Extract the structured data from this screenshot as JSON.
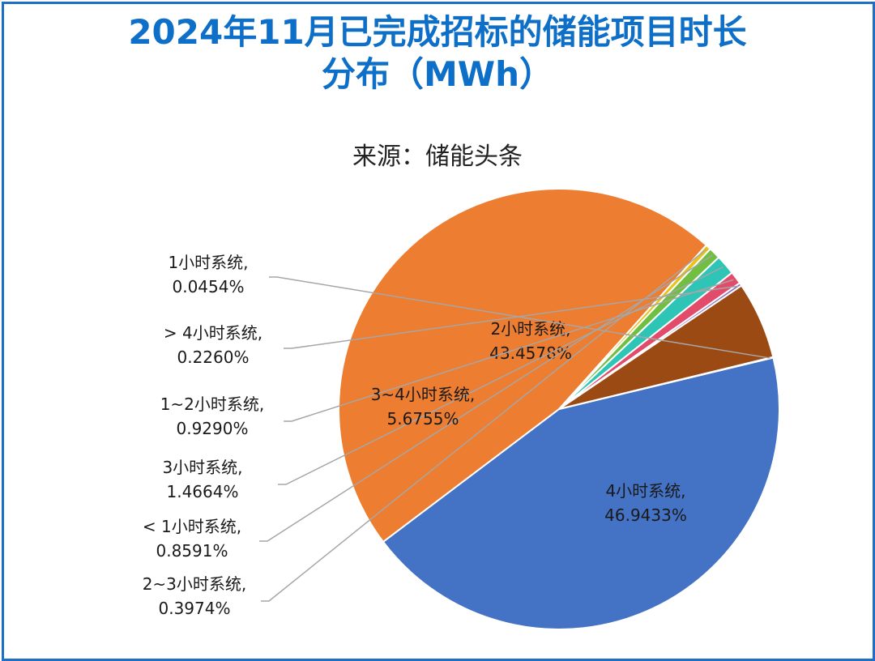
{
  "title_line1": "2024年11月已完成招标的储能项目时长",
  "title_line2": "分布（MWh）",
  "subtitle": "来源：储能头条",
  "chart_data": {
    "type": "pie",
    "title": "2024年11月已完成招标的储能项目时长分布（MWh）",
    "subtitle": "来源：储能头条",
    "slices": [
      {
        "name": "2小时系统",
        "value": 43.4578,
        "label": "43.4578%",
        "color": "#4472C4"
      },
      {
        "name": "4小时系统",
        "value": 46.9433,
        "label": "46.9433%",
        "color": "#ED7D31"
      },
      {
        "name": "2~3小时系统",
        "value": 0.3974,
        "label": "0.3974%",
        "color": "#E8C31A"
      },
      {
        "name": "< 1小时系统",
        "value": 0.8591,
        "label": "0.8591%",
        "color": "#70BF43"
      },
      {
        "name": "3小时系统",
        "value": 1.4664,
        "label": "1.4664%",
        "color": "#2EC4B6"
      },
      {
        "name": "1~2小时系统",
        "value": 0.929,
        "label": "0.9290%",
        "color": "#E34B6B"
      },
      {
        "name": "> 4小时系统",
        "value": 0.226,
        "label": "0.2260%",
        "color": "#8B6FC4"
      },
      {
        "name": "3~4小时系统",
        "value": 5.6755,
        "label": "5.6755%",
        "color": "#9C4A14"
      },
      {
        "name": "1小时系统",
        "value": 0.0454,
        "label": "0.0454%",
        "color": "#2F5597"
      }
    ]
  }
}
